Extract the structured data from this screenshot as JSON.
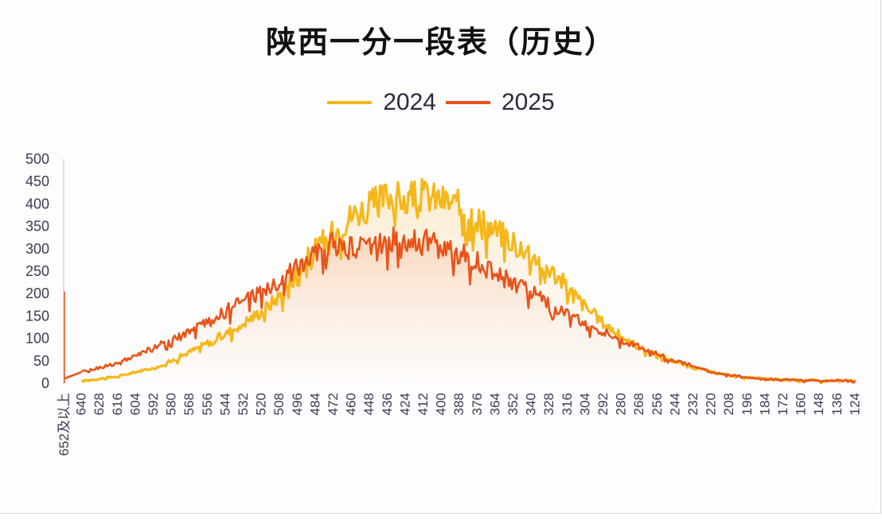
{
  "chart_data": {
    "type": "line",
    "title": "陕西一分一段表（历史）",
    "xlabel": "",
    "ylabel": "",
    "ylim": [
      0,
      500
    ],
    "yticks": [
      0,
      50,
      100,
      150,
      200,
      250,
      300,
      350,
      400,
      450,
      500
    ],
    "grid": false,
    "legend_position": "top",
    "categories": [
      "652及以上",
      "640",
      "628",
      "616",
      "604",
      "592",
      "580",
      "568",
      "556",
      "544",
      "532",
      "520",
      "508",
      "496",
      "484",
      "472",
      "460",
      "448",
      "436",
      "424",
      "412",
      "400",
      "388",
      "376",
      "364",
      "352",
      "340",
      "328",
      "316",
      "304",
      "292",
      "280",
      "268",
      "256",
      "244",
      "232",
      "220",
      "208",
      "196",
      "184",
      "172",
      "160",
      "148",
      "136",
      "124"
    ],
    "series": [
      {
        "name": "2024",
        "color": "#f5b81c",
        "values": [
          0,
          5,
          10,
          15,
          25,
          35,
          50,
          70,
          90,
          110,
          135,
          160,
          195,
          250,
          300,
          335,
          375,
          395,
          420,
          410,
          420,
          410,
          395,
          370,
          340,
          320,
          290,
          255,
          215,
          170,
          135,
          105,
          80,
          62,
          48,
          35,
          25,
          18,
          13,
          10,
          8,
          7,
          6,
          6,
          6
        ]
      },
      {
        "name": "2025",
        "color": "#e8531a",
        "values": [
          205,
          25,
          35,
          45,
          60,
          80,
          95,
          115,
          135,
          160,
          185,
          205,
          225,
          260,
          300,
          310,
          300,
          310,
          320,
          320,
          320,
          300,
          290,
          270,
          245,
          225,
          205,
          175,
          155,
          130,
          115,
          95,
          80,
          65,
          50,
          38,
          25,
          18,
          14,
          10,
          8,
          7,
          6,
          6,
          6
        ]
      }
    ]
  },
  "legend": {
    "items": [
      {
        "label": "2024",
        "color": "#f5b81c"
      },
      {
        "label": "2025",
        "color": "#e8531a"
      }
    ]
  }
}
